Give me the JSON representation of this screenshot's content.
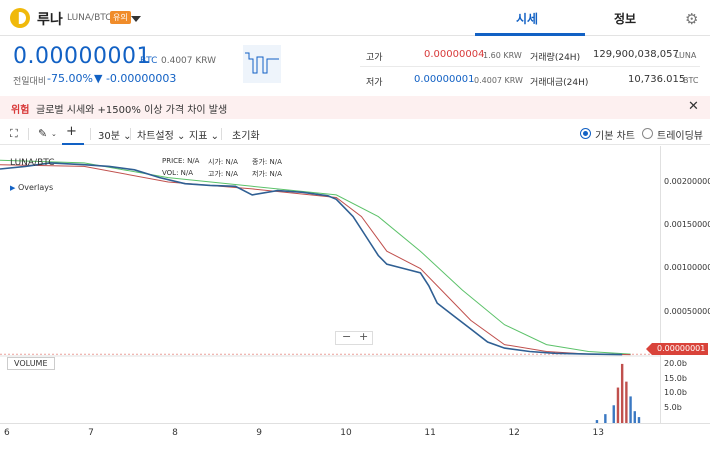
{
  "header": {
    "coin_name": "루나",
    "pair": "LUNA/BTC",
    "badge": "유의",
    "tabs": [
      {
        "label": "시세"
      },
      {
        "label": "정보"
      }
    ]
  },
  "price": {
    "current": "0.00000001",
    "unit": "BTC",
    "krw": "0.4007 KRW",
    "change_label": "전일대비",
    "change_pct": "-75.00%",
    "change_abs": "▼ -0.00000003"
  },
  "stats": {
    "high_label": "고가",
    "high_value": "0.00000004",
    "high_krw": "1.60 KRW",
    "low_label": "저가",
    "low_value": "0.00000001",
    "low_krw": "0.4007 KRW",
    "volume_label": "거래량(24H)",
    "volume_value": "129,900,038,057",
    "volume_unit": "LUNA",
    "amount_label": "거래대금(24H)",
    "amount_value": "10,736.015",
    "amount_unit": "BTC"
  },
  "alert": {
    "tag": "위험",
    "message": "글로벌 시세와 +1500% 이상 가격 차이 발생"
  },
  "toolbar": {
    "interval": "30분",
    "chart_settings": "차트설정",
    "indicators": "지표",
    "reset": "초기화",
    "basic_chart": "기본 차트",
    "tradingview": "트레이딩뷰"
  },
  "chart": {
    "pair_label": "LUNA/BTC",
    "overlays": "Overlays",
    "ohlc": [
      {
        "label": "PRICE:",
        "value": "N/A"
      },
      {
        "label": "시가:",
        "value": "N/A"
      },
      {
        "label": "종가:",
        "value": "N/A"
      },
      {
        "label": "VOL:",
        "value": "N/A"
      },
      {
        "label": "고가:",
        "value": "N/A"
      },
      {
        "label": "저가:",
        "value": "N/A"
      }
    ],
    "volume_label": "VOLUME",
    "current_price_tag": "0.00000001",
    "zoom_out": "−",
    "zoom_in": "+"
  },
  "chart_data": {
    "type": "line",
    "x_ticks": [
      "6",
      "7",
      "8",
      "9",
      "10",
      "11",
      "12",
      "13"
    ],
    "y_ticks": [
      "0.00200000",
      "0.00150000",
      "0.00100000",
      "0.00050000"
    ],
    "volume_ticks": [
      "20.0b",
      "15.0b",
      "10.0b",
      "5.0b"
    ],
    "price": [
      [
        6.0,
        0.00215
      ],
      [
        6.3,
        0.00218
      ],
      [
        6.6,
        0.00222
      ],
      [
        7.0,
        0.0022
      ],
      [
        7.3,
        0.00218
      ],
      [
        7.6,
        0.00214
      ],
      [
        7.9,
        0.00205
      ],
      [
        8.2,
        0.00198
      ],
      [
        8.5,
        0.00196
      ],
      [
        8.8,
        0.00195
      ],
      [
        9.0,
        0.00185
      ],
      [
        9.3,
        0.0019
      ],
      [
        9.6,
        0.00188
      ],
      [
        9.9,
        0.00184
      ],
      [
        10.0,
        0.0018
      ],
      [
        10.1,
        0.0017
      ],
      [
        10.2,
        0.0016
      ],
      [
        10.3,
        0.00145
      ],
      [
        10.4,
        0.0013
      ],
      [
        10.5,
        0.00115
      ],
      [
        10.6,
        0.00105
      ],
      [
        10.8,
        0.001
      ],
      [
        11.0,
        0.00095
      ],
      [
        11.1,
        0.0008
      ],
      [
        11.2,
        0.0006
      ],
      [
        11.4,
        0.00045
      ],
      [
        11.6,
        0.0003
      ],
      [
        11.8,
        0.00015
      ],
      [
        12.0,
        8e-05
      ],
      [
        12.3,
        4e-05
      ],
      [
        12.6,
        2e-05
      ],
      [
        13.0,
        1e-05
      ],
      [
        13.4,
        5e-06
      ]
    ],
    "ma_long": [
      [
        6.0,
        0.00225
      ],
      [
        7.0,
        0.00222
      ],
      [
        8.0,
        0.00205
      ],
      [
        9.0,
        0.00195
      ],
      [
        10.0,
        0.00185
      ],
      [
        10.5,
        0.0016
      ],
      [
        11.0,
        0.0012
      ],
      [
        11.5,
        0.00075
      ],
      [
        12.0,
        0.00035
      ],
      [
        12.5,
        0.00012
      ],
      [
        13.0,
        4e-05
      ],
      [
        13.5,
        1e-05
      ]
    ],
    "ma_short": [
      [
        6.0,
        0.0022
      ],
      [
        7.0,
        0.00218
      ],
      [
        8.0,
        0.002
      ],
      [
        9.0,
        0.00192
      ],
      [
        10.0,
        0.00182
      ],
      [
        10.3,
        0.0016
      ],
      [
        10.6,
        0.0012
      ],
      [
        11.0,
        0.001
      ],
      [
        11.3,
        0.0007
      ],
      [
        11.6,
        0.0004
      ],
      [
        12.0,
        0.00012
      ],
      [
        12.5,
        4e-05
      ],
      [
        13.0,
        1e-05
      ],
      [
        13.5,
        5e-06
      ]
    ],
    "volume": [
      [
        13.1,
        1
      ],
      [
        13.2,
        3
      ],
      [
        13.3,
        6
      ],
      [
        13.35,
        12
      ],
      [
        13.4,
        20
      ],
      [
        13.45,
        14
      ],
      [
        13.5,
        9
      ],
      [
        13.55,
        4
      ],
      [
        13.6,
        2
      ]
    ]
  }
}
